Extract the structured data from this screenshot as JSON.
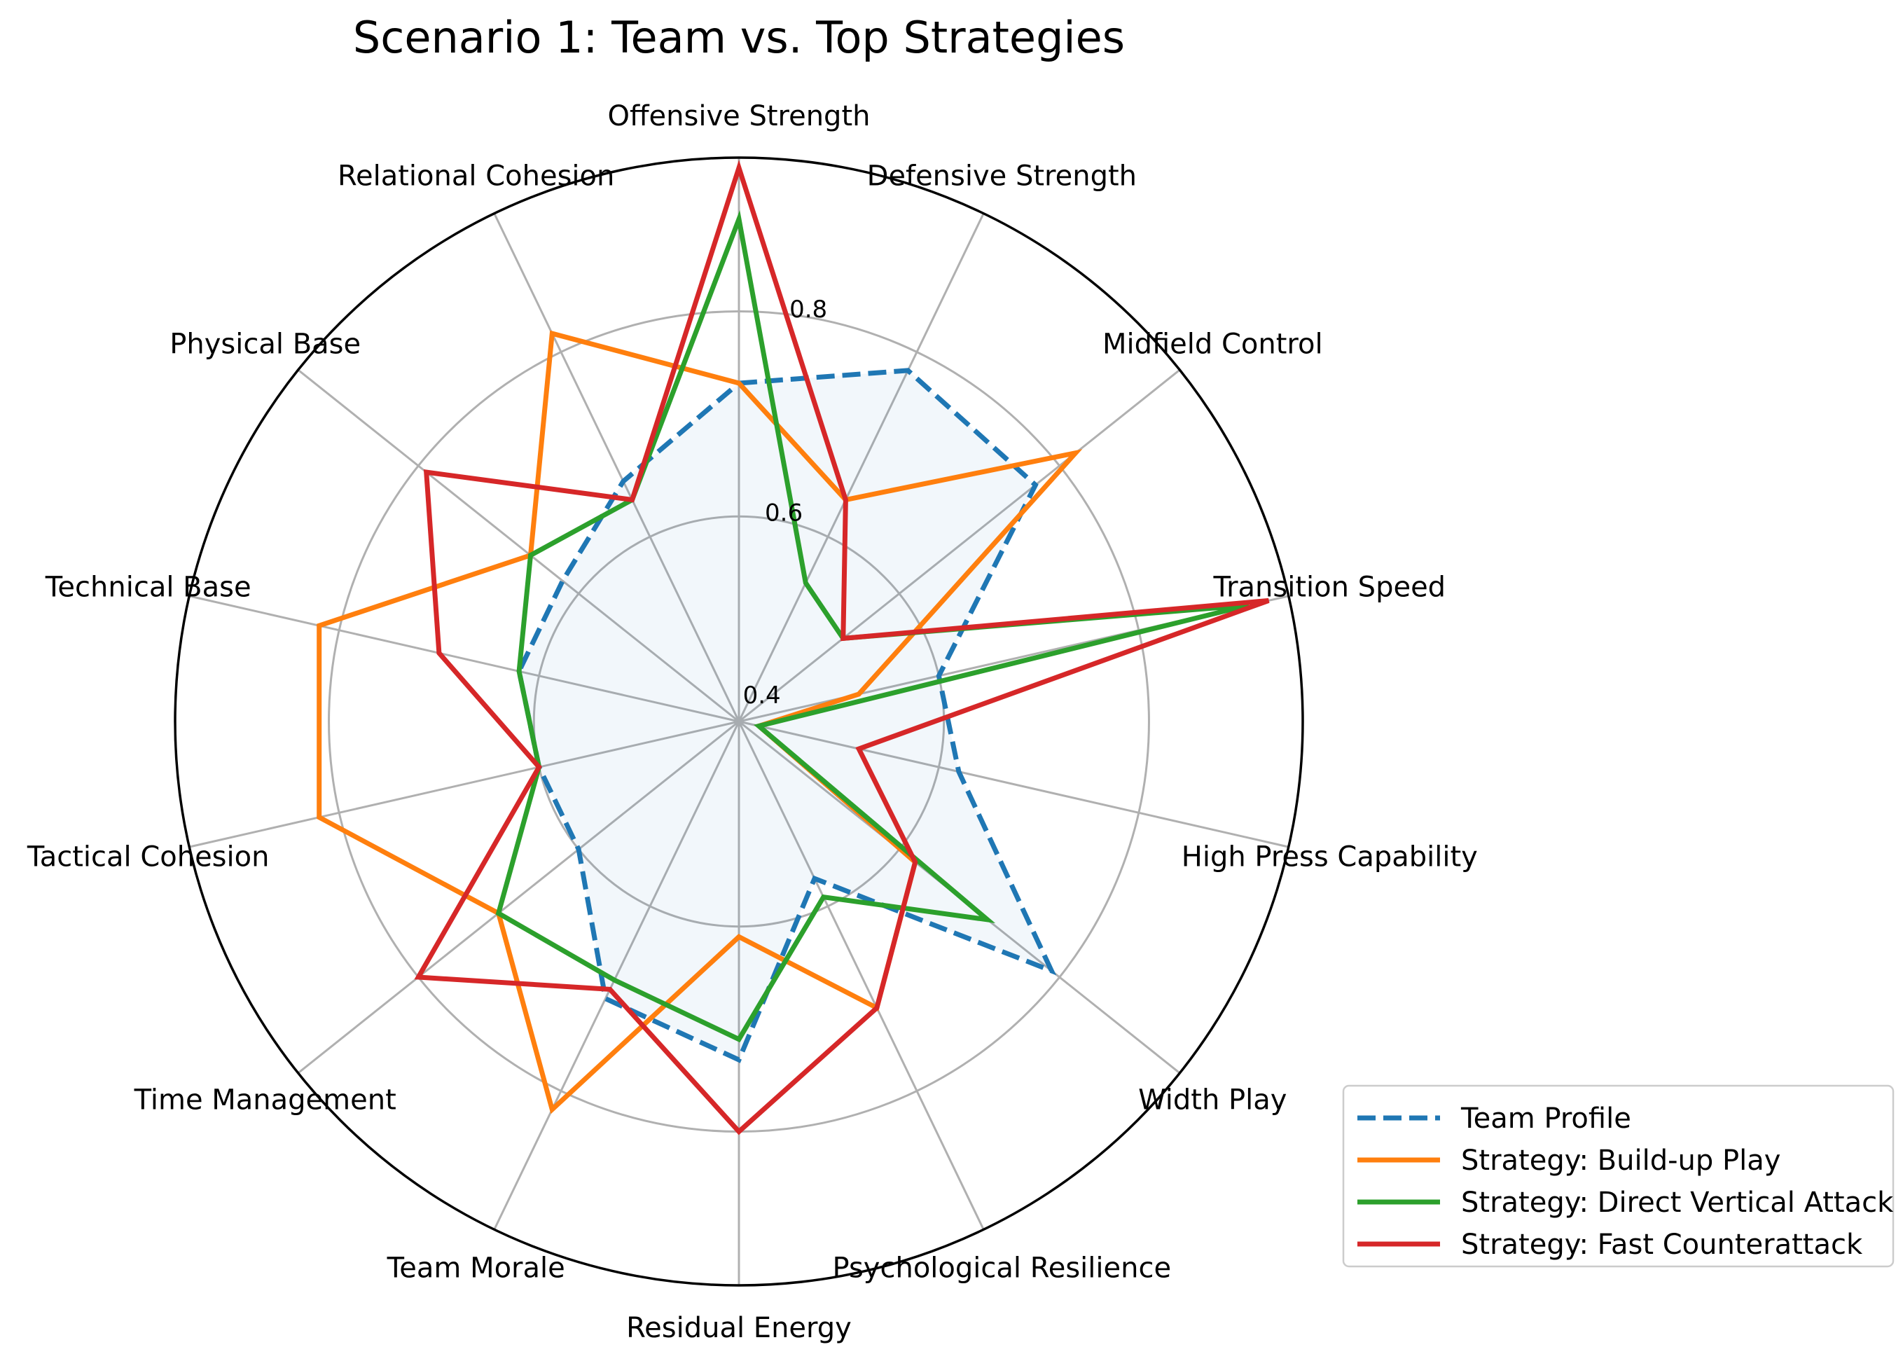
{
  "chart_data": {
    "type": "radar",
    "title": "Scenario 1: Team vs. Top Strategies",
    "axes": [
      "Offensive Strength",
      "Defensive Strength",
      "Midfield Control",
      "Transition Speed",
      "High Press Capability",
      "Width Play",
      "Psychological Resilience",
      "Residual Energy",
      "Team Morale",
      "Time Management",
      "Tactical Cohesion",
      "Technical Base",
      "Physical Base",
      "Relational Cohesion"
    ],
    "rlim": [
      0.4,
      0.95
    ],
    "rticks": [
      0.4,
      0.6,
      0.8
    ],
    "rtick_labels": [
      "0.4",
      "0.6",
      "0.8"
    ],
    "grid": true,
    "legend_position": "lower-right",
    "series": [
      {
        "name": "Team Profile",
        "color": "#1f77b4",
        "style": "dashed",
        "filled": true,
        "values": [
          0.73,
          0.78,
          0.77,
          0.6,
          0.62,
          0.79,
          0.57,
          0.73,
          0.7,
          0.6,
          0.6,
          0.62,
          0.62,
          0.66
        ]
      },
      {
        "name": "Strategy: Build-up Play",
        "color": "#ff7f0e",
        "style": "solid",
        "filled": false,
        "values": [
          0.73,
          0.64,
          0.82,
          0.52,
          0.42,
          0.62,
          0.71,
          0.61,
          0.82,
          0.7,
          0.82,
          0.82,
          0.66,
          0.82
        ]
      },
      {
        "name": "Strategy: Direct Vertical Attack",
        "color": "#2ca02c",
        "style": "solid",
        "filled": false,
        "values": [
          0.89,
          0.55,
          0.53,
          0.91,
          0.42,
          0.71,
          0.59,
          0.71,
          0.68,
          0.7,
          0.6,
          0.62,
          0.66,
          0.64
        ]
      },
      {
        "name": "Strategy: Fast Counterattack",
        "color": "#d62728",
        "style": "solid",
        "filled": false,
        "values": [
          0.94,
          0.64,
          0.53,
          0.93,
          0.52,
          0.62,
          0.71,
          0.8,
          0.69,
          0.8,
          0.6,
          0.7,
          0.79,
          0.64
        ]
      }
    ]
  }
}
